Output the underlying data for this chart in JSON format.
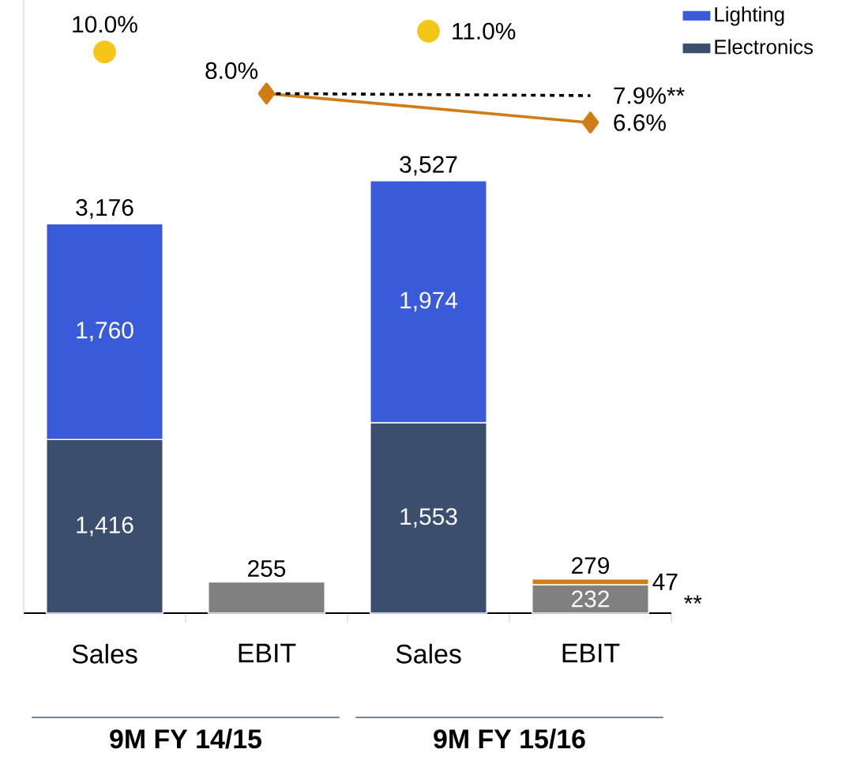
{
  "chart_data": {
    "type": "bar",
    "stacked": true,
    "categories": [
      "Sales",
      "EBIT",
      "Sales",
      "EBIT"
    ],
    "ylim": [
      0,
      5000
    ],
    "y2lim": [
      -17,
      12.5
    ],
    "tick_labels": "x",
    "legend": "top right",
    "grid": false,
    "series": [
      {
        "name": "Electronics",
        "color": "#3b4e6e",
        "values": [
          1416,
          null,
          1553,
          null
        ],
        "value_labels": [
          "1,416",
          null,
          "1,553",
          null
        ]
      },
      {
        "name": "Lighting",
        "color": "#3a5bd9",
        "values": [
          1760,
          null,
          1974,
          null
        ],
        "value_labels": [
          "1,760",
          null,
          "1,974",
          null
        ]
      },
      {
        "color": "#808080",
        "values": [
          null,
          255,
          null,
          232
        ],
        "value_labels": [
          null,
          null,
          null,
          "232"
        ]
      },
      {
        "color": "#d27c17",
        "values": [
          null,
          null,
          null,
          47
        ],
        "value_labels": [
          null,
          null,
          null,
          "47"
        ]
      },
      {
        "type": "scatter",
        "axis": "y2",
        "marker": "circle",
        "color": "#f5c518",
        "values": [
          10.0,
          null,
          11.0,
          null
        ],
        "value_labels": [
          "10.0%",
          null,
          "11.0%",
          null
        ]
      },
      {
        "type": "line",
        "axis": "y2",
        "marker": "diamond",
        "line_style": "solid",
        "color": "#d27c17",
        "values": [
          null,
          8.0,
          null,
          6.6
        ],
        "value_labels": [
          null,
          "8.0%",
          null,
          "6.6%"
        ]
      },
      {
        "type": "line",
        "axis": "y2",
        "marker": "none",
        "line_style": "dashed",
        "color": "#000000",
        "values": [
          null,
          8.0,
          null,
          7.9
        ],
        "value_labels": [
          null,
          null,
          null,
          "7.9%**"
        ]
      }
    ],
    "totals": [
      "3,176",
      "255",
      "3,527",
      "279"
    ],
    "annotations": [
      "9M FY 14/15",
      "9M FY 15/16",
      "**"
    ]
  }
}
